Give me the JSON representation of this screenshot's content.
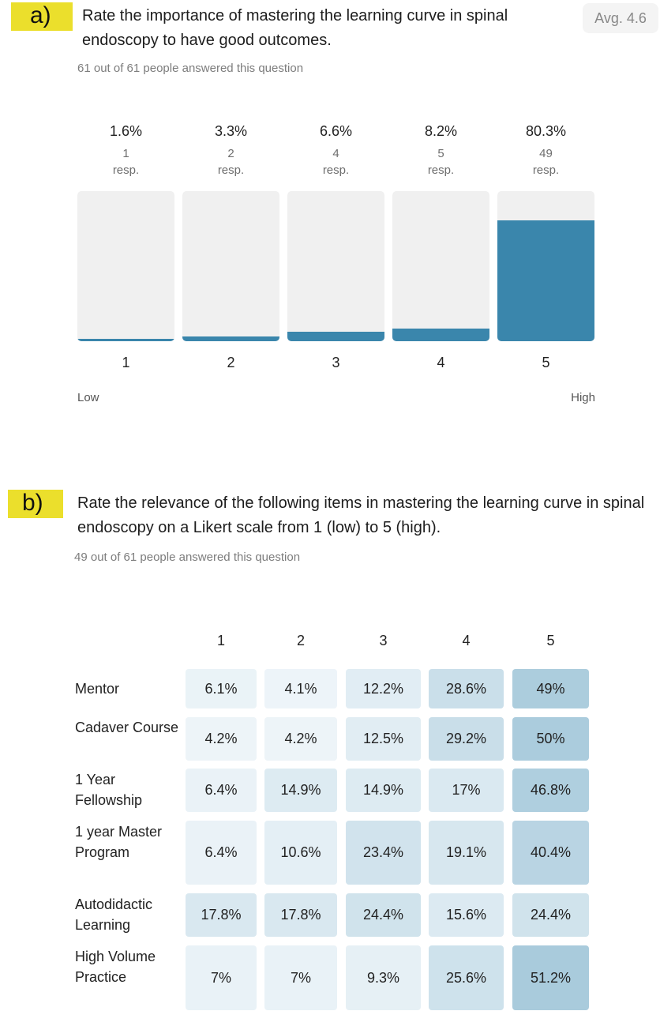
{
  "chart_data": [
    {
      "type": "bar",
      "panel_tag": "a)",
      "title": "Rate the importance of mastering the learning curve in spinal endoscopy to have good outcomes.",
      "subtitle": "61 out of 61 people answered this question",
      "average_label": "Avg. 4.6",
      "categories": [
        "1",
        "2",
        "3",
        "4",
        "5"
      ],
      "values": [
        1.6,
        3.3,
        6.6,
        8.2,
        80.3
      ],
      "percent_labels": [
        "1.6%",
        "3.3%",
        "6.6%",
        "8.2%",
        "80.3%"
      ],
      "counts": [
        "1",
        "2",
        "4",
        "5",
        "49"
      ],
      "count_unit": "resp.",
      "ylim": [
        0,
        100
      ],
      "x_low_label": "Low",
      "x_high_label": "High",
      "bar_color": "#3a86ac",
      "track_color": "#f0f0f0"
    },
    {
      "type": "heatmap",
      "panel_tag": "b)",
      "title": "Rate the relevance of the following items in mastering the learning curve in spinal endoscopy on a Likert scale from 1 (low) to 5 (high).",
      "subtitle": "49 out of 61 people answered this question",
      "columns": [
        "1",
        "2",
        "3",
        "4",
        "5"
      ],
      "rows": [
        {
          "label": "Mentor",
          "values": [
            6.1,
            4.1,
            12.2,
            28.6,
            49
          ],
          "labels": [
            "6.1%",
            "4.1%",
            "12.2%",
            "28.6%",
            "49%"
          ]
        },
        {
          "label": "Cadaver Course",
          "values": [
            4.2,
            4.2,
            12.5,
            29.2,
            50
          ],
          "labels": [
            "4.2%",
            "4.2%",
            "12.5%",
            "29.2%",
            "50%"
          ]
        },
        {
          "label": "1 Year Fellowship",
          "values": [
            6.4,
            14.9,
            14.9,
            17,
            46.8
          ],
          "labels": [
            "6.4%",
            "14.9%",
            "14.9%",
            "17%",
            "46.8%"
          ]
        },
        {
          "label": "1 year Master Program",
          "values": [
            6.4,
            10.6,
            23.4,
            19.1,
            40.4
          ],
          "labels": [
            "6.4%",
            "10.6%",
            "23.4%",
            "19.1%",
            "40.4%"
          ]
        },
        {
          "label": "Autodidactic Learning",
          "values": [
            17.8,
            17.8,
            24.4,
            15.6,
            24.4
          ],
          "labels": [
            "17.8%",
            "17.8%",
            "24.4%",
            "15.6%",
            "24.4%"
          ]
        },
        {
          "label": "High Volume Practice",
          "values": [
            7,
            7,
            9.3,
            25.6,
            51.2
          ],
          "labels": [
            "7%",
            "7%",
            "9.3%",
            "25.6%",
            "51.2%"
          ]
        }
      ],
      "color_scale": [
        "#f3f8fb",
        "#a9cbdc"
      ]
    }
  ]
}
